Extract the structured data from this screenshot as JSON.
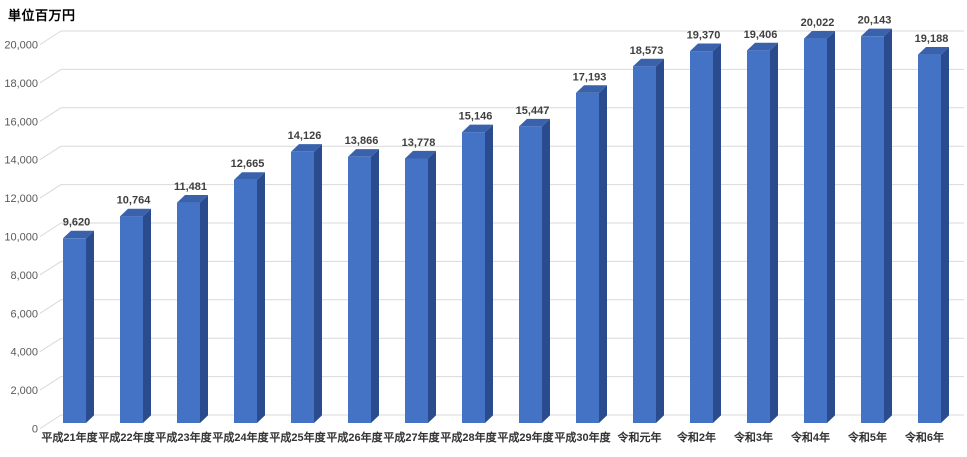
{
  "chart_data": {
    "type": "bar",
    "style": "3d-column",
    "title": "単位百万円",
    "xlabel": "",
    "ylabel": "単位百万円",
    "legend": "none",
    "grid": true,
    "ylim": [
      0,
      20000
    ],
    "y_tick_step": 2000,
    "y_tick_labels": [
      "0",
      "2,000",
      "4,000",
      "6,000",
      "8,000",
      "10,000",
      "12,000",
      "14,000",
      "16,000",
      "18,000",
      "20,000"
    ],
    "categories": [
      "平成21年度",
      "平成22年度",
      "平成23年度",
      "平成24年度",
      "平成25年度",
      "平成26年度",
      "平成27年度",
      "平成28年度",
      "平成29年度",
      "平成30年度",
      "令和元年",
      "令和2年",
      "令和3年",
      "令和4年",
      "令和5年",
      "令和6年"
    ],
    "values": [
      9620,
      10764,
      11481,
      12665,
      14126,
      13866,
      13778,
      15146,
      15447,
      17193,
      18573,
      19370,
      19406,
      20022,
      20143,
      19188
    ],
    "value_labels": [
      "9,620",
      "10,764",
      "11,481",
      "12,665",
      "14,126",
      "13,866",
      "13,778",
      "15,146",
      "15,447",
      "17,193",
      "18,573",
      "19,370",
      "19,406",
      "20,022",
      "20,143",
      "19,188"
    ],
    "colors": {
      "bar_front": "#4472C4",
      "bar_top": "#3A62AC",
      "bar_side": "#2A4B8D",
      "gridline": "#D9D9D9",
      "tick_label": "#595959",
      "value_label": "#3F3F3F",
      "category_label": "#333333",
      "title": "#000000",
      "background": "#FFFFFF"
    }
  }
}
